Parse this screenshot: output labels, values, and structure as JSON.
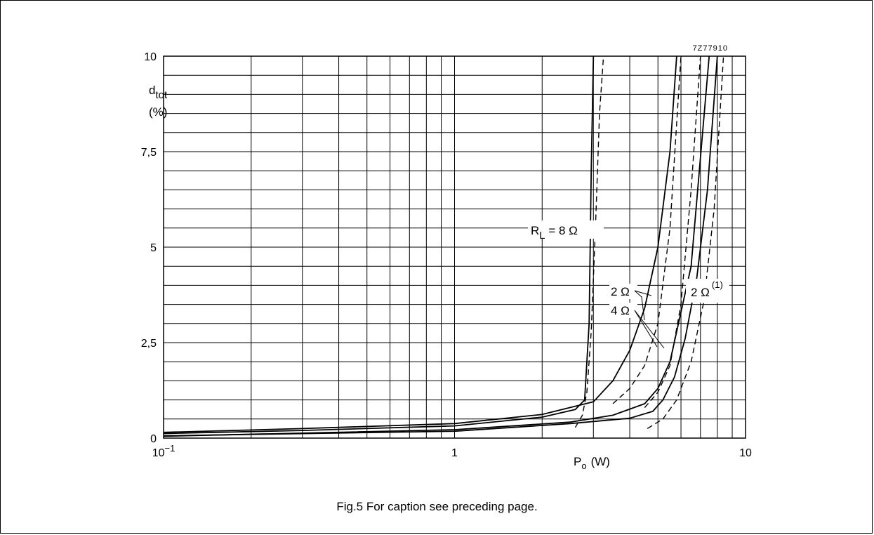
{
  "chart_data": {
    "type": "line",
    "figure_code": "7Z77910",
    "ylabel_main": "d",
    "ylabel_sub": "tot",
    "ylabel_unit": "(%)",
    "xlabel_main": "P",
    "xlabel_sub": "o",
    "xlabel_unit": "(W)",
    "xscale": "log",
    "xlim": [
      0.1,
      10
    ],
    "ylim": [
      0,
      10
    ],
    "grid": true,
    "x_tick_labels": [
      {
        "value": 0.1,
        "base": "10",
        "exp": "−1"
      },
      {
        "value": 1,
        "base": "1",
        "exp": ""
      },
      {
        "value": 10,
        "base": "10",
        "exp": ""
      }
    ],
    "y_tick_labels": [
      {
        "value": 0,
        "text": "0"
      },
      {
        "value": 2.5,
        "text": "2,5"
      },
      {
        "value": 5,
        "text": "5"
      },
      {
        "value": 7.5,
        "text": "7,5"
      },
      {
        "value": 10,
        "text": "10"
      }
    ],
    "annotations": {
      "rl_prefix": "R",
      "rl_sub": "L",
      "rl_value": " = 8 Ω",
      "two_ohm": "2 Ω",
      "four_ohm": "4 Ω",
      "two_ohm_note": "2 Ω",
      "note_mark": "(1)"
    },
    "series": [
      {
        "style": "solid",
        "x": [
          0.1,
          0.3,
          1,
          2,
          2.6,
          2.8,
          2.9,
          2.95,
          3.0
        ],
        "y": [
          0.12,
          0.2,
          0.32,
          0.55,
          0.75,
          1.0,
          3.0,
          7.0,
          10
        ]
      },
      {
        "style": "dashed",
        "x": [
          2.6,
          2.75,
          2.85,
          2.95,
          3.05,
          3.15,
          3.25
        ],
        "y": [
          0.28,
          0.6,
          1.2,
          2.8,
          5.5,
          8.5,
          10
        ]
      },
      {
        "style": "solid",
        "x": [
          0.1,
          0.3,
          1,
          2,
          3,
          3.5,
          4,
          4.5,
          5,
          5.5,
          5.8
        ],
        "y": [
          0.15,
          0.25,
          0.38,
          0.62,
          0.95,
          1.5,
          2.3,
          3.4,
          5.0,
          7.5,
          10
        ]
      },
      {
        "style": "dashed",
        "x": [
          3.5,
          4,
          4.5,
          5,
          5.5,
          6
        ],
        "y": [
          0.9,
          1.3,
          1.9,
          3.0,
          5.5,
          10
        ]
      },
      {
        "style": "solid",
        "x": [
          0.1,
          1,
          2.5,
          3.5,
          4.5,
          5,
          5.5,
          6.5,
          7.5
        ],
        "y": [
          0.05,
          0.22,
          0.42,
          0.6,
          0.9,
          1.3,
          2.0,
          4.5,
          10
        ]
      },
      {
        "style": "dashed",
        "x": [
          4.5,
          5,
          5.5,
          6,
          6.5,
          7
        ],
        "y": [
          0.8,
          1.2,
          1.9,
          3.5,
          6.5,
          10
        ]
      },
      {
        "style": "solid",
        "x": [
          0.1,
          1,
          2.5,
          4,
          4.8,
          5.2,
          5.7,
          6.2,
          6.8,
          7.4,
          8
        ],
        "y": [
          0.06,
          0.18,
          0.38,
          0.52,
          0.7,
          1.0,
          1.6,
          2.6,
          4.2,
          6.5,
          10
        ]
      },
      {
        "style": "dashed",
        "x": [
          4.6,
          5.2,
          5.8,
          6.5,
          7.2,
          7.8,
          8.4
        ],
        "y": [
          0.25,
          0.5,
          1.0,
          2.0,
          3.6,
          6.0,
          10
        ]
      }
    ]
  },
  "caption": "Fig.5  For caption see preceding page."
}
